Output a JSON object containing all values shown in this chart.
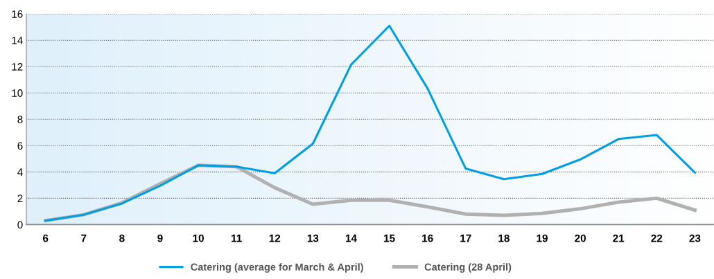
{
  "chart_data": {
    "type": "line",
    "categories": [
      "6",
      "7",
      "8",
      "9",
      "10",
      "11",
      "12",
      "13",
      "14",
      "15",
      "16",
      "17",
      "18",
      "19",
      "20",
      "21",
      "22",
      "23"
    ],
    "series": [
      {
        "name": "Catering (average for March & April)",
        "color": "#009fe3",
        "values": [
          0.3,
          0.75,
          1.6,
          2.95,
          4.5,
          4.4,
          3.9,
          6.15,
          12.15,
          15.1,
          10.35,
          4.25,
          3.45,
          3.85,
          4.95,
          6.5,
          6.8,
          3.95
        ]
      },
      {
        "name": "Catering (28 April)",
        "color": "#b1b1b1",
        "values": [
          0.3,
          0.75,
          1.65,
          3.1,
          4.5,
          4.4,
          2.8,
          1.55,
          1.85,
          1.85,
          1.35,
          0.8,
          0.7,
          0.85,
          1.2,
          1.7,
          2.0,
          1.1
        ]
      }
    ],
    "ylim": [
      0,
      16
    ],
    "yticks": [
      0,
      2,
      4,
      6,
      8,
      10,
      12,
      14,
      16
    ],
    "grid": "y",
    "legend": "bottom",
    "marker": "none",
    "line_style": "solid"
  }
}
